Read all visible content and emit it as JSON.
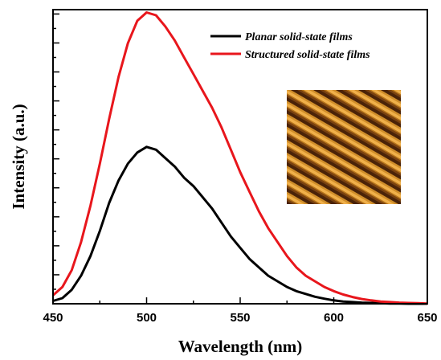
{
  "chart_data": {
    "type": "line",
    "xlabel": "Wavelength (nm)",
    "ylabel": "Intensity (a.u.)",
    "xlim": [
      450,
      650
    ],
    "ylim": [
      0,
      1.05
    ],
    "xticks": [
      "450",
      "500",
      "550",
      "600",
      "650"
    ],
    "yaxis_tick_labels": false,
    "grid": false,
    "legend_position": "top-right",
    "inset": "AFM image of periodic grating structure (orange/brown stripes)",
    "series": [
      {
        "name": "Planar solid-state films",
        "color": "#000000",
        "x": [
          450,
          455,
          460,
          465,
          470,
          475,
          480,
          485,
          490,
          495,
          500,
          505,
          510,
          515,
          520,
          525,
          530,
          535,
          540,
          545,
          550,
          555,
          560,
          565,
          570,
          575,
          580,
          585,
          590,
          595,
          600,
          605,
          610,
          615,
          620,
          625,
          630,
          635,
          640,
          645,
          650
        ],
        "y": [
          0.01,
          0.02,
          0.05,
          0.1,
          0.17,
          0.26,
          0.36,
          0.44,
          0.5,
          0.54,
          0.56,
          0.55,
          0.52,
          0.49,
          0.45,
          0.42,
          0.38,
          0.34,
          0.29,
          0.24,
          0.2,
          0.16,
          0.13,
          0.1,
          0.08,
          0.06,
          0.045,
          0.035,
          0.025,
          0.018,
          0.012,
          0.008,
          0.006,
          0.004,
          0.003,
          0.002,
          0.001,
          0.001,
          0.0,
          0.0,
          0.0
        ]
      },
      {
        "name": "Structured solid-state films",
        "color": "#e8161c",
        "x": [
          450,
          455,
          460,
          465,
          470,
          475,
          480,
          485,
          490,
          495,
          500,
          505,
          510,
          515,
          520,
          525,
          530,
          535,
          540,
          545,
          550,
          555,
          560,
          565,
          570,
          575,
          580,
          585,
          590,
          595,
          600,
          605,
          610,
          615,
          620,
          625,
          630,
          635,
          640,
          645,
          650
        ],
        "y": [
          0.03,
          0.06,
          0.12,
          0.22,
          0.35,
          0.5,
          0.66,
          0.81,
          0.93,
          1.01,
          1.04,
          1.03,
          0.99,
          0.94,
          0.88,
          0.82,
          0.76,
          0.7,
          0.63,
          0.55,
          0.47,
          0.4,
          0.33,
          0.27,
          0.22,
          0.17,
          0.13,
          0.1,
          0.08,
          0.06,
          0.045,
          0.033,
          0.024,
          0.017,
          0.012,
          0.008,
          0.006,
          0.004,
          0.003,
          0.002,
          0.001
        ]
      }
    ]
  }
}
